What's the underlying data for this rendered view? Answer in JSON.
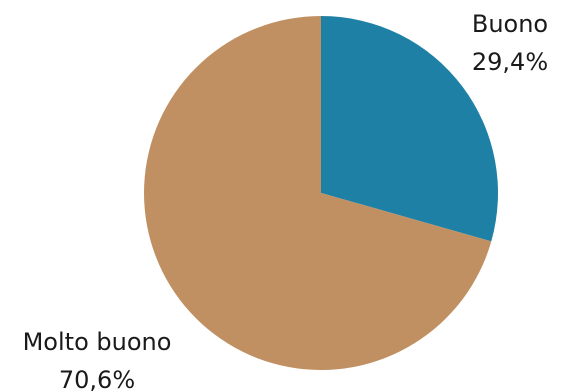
{
  "chart_data": {
    "type": "pie",
    "slices": [
      {
        "label": "Buono",
        "value": 29.4,
        "display": "29,4%",
        "color": "#1f80a5"
      },
      {
        "label": "Molto buono",
        "value": 70.6,
        "display": "70,6%",
        "color": "#c09062"
      }
    ],
    "start_angle_deg": 0,
    "direction": "clockwise",
    "legend": "none"
  }
}
